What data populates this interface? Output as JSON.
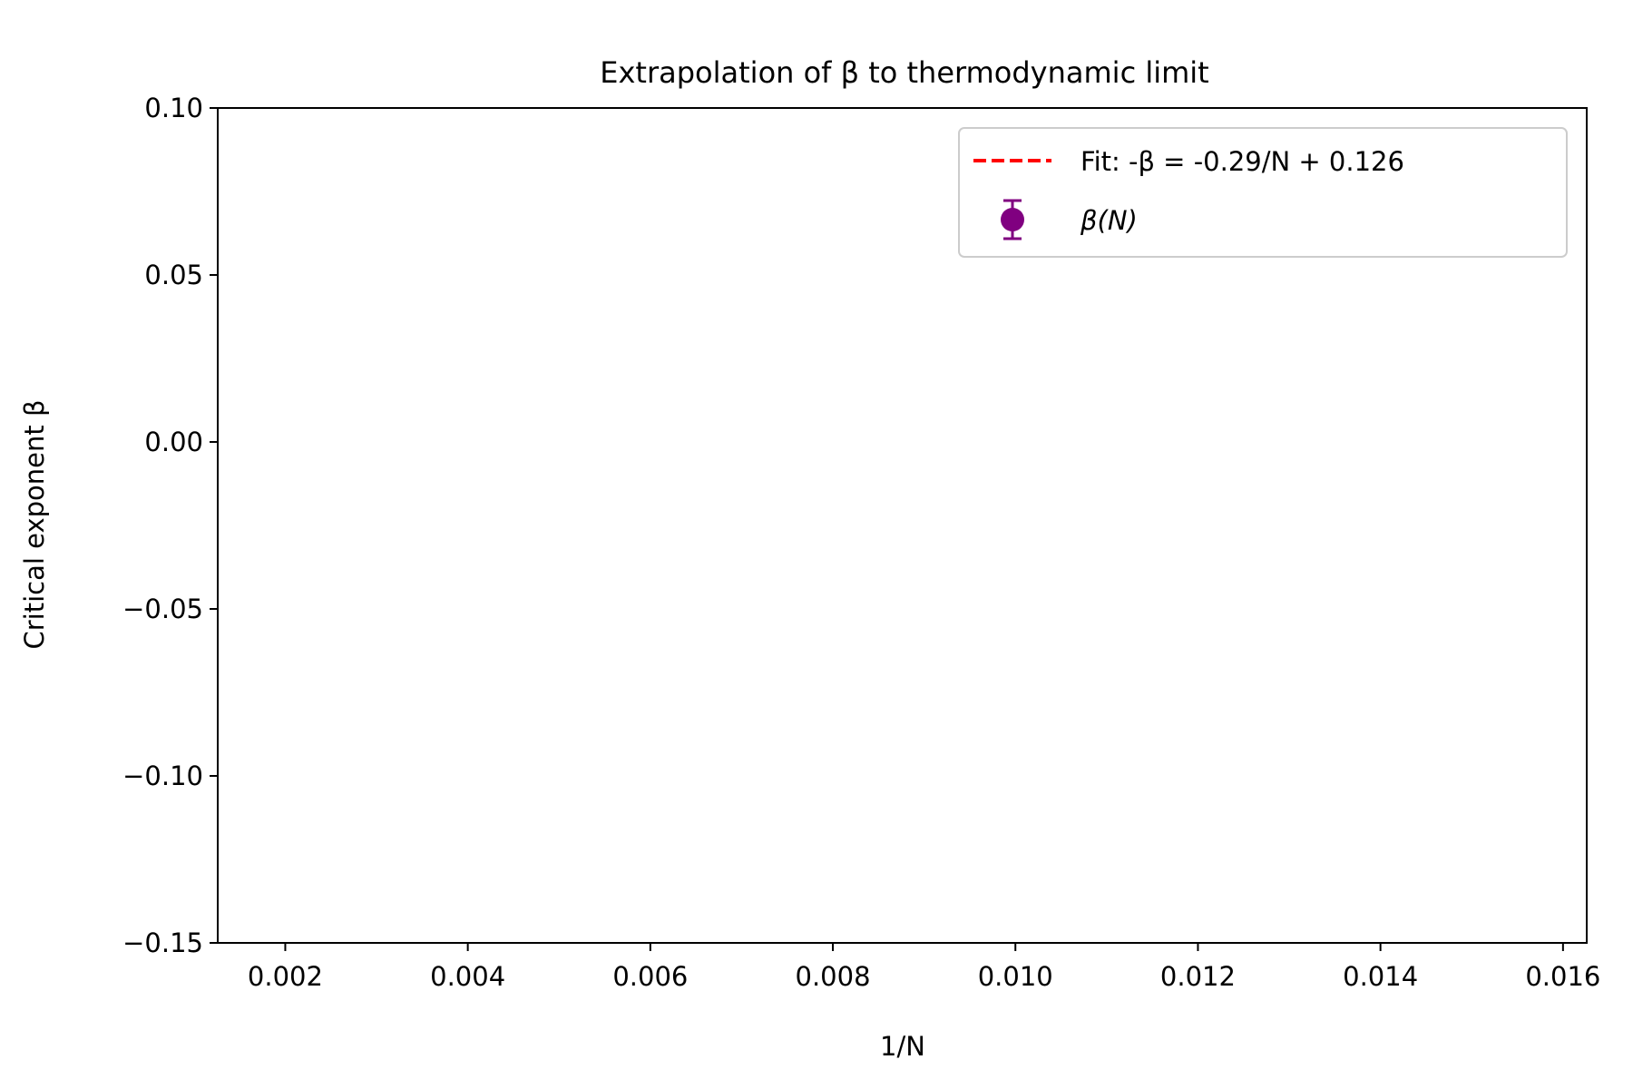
{
  "chart_data": {
    "type": "scatter",
    "title": "Extrapolation of β to thermodynamic limit",
    "xlabel": "1/N",
    "ylabel": "Critical exponent β",
    "xlim": [
      0.00126,
      0.01626
    ],
    "ylim": [
      -0.15,
      0.1
    ],
    "xticks": [
      0.002,
      0.004,
      0.006,
      0.008,
      0.01,
      0.012,
      0.014,
      0.016
    ],
    "xtick_labels": [
      "0.002",
      "0.004",
      "0.006",
      "0.008",
      "0.010",
      "0.012",
      "0.014",
      "0.016"
    ],
    "yticks": [
      0.1,
      0.05,
      0.0,
      -0.05,
      -0.1,
      -0.15
    ],
    "ytick_labels": [
      "0.10",
      "0.05",
      "0.00",
      "−0.05",
      "−0.10",
      "−0.15"
    ],
    "grid": false,
    "legend_position": "top-right",
    "series": [
      {
        "name": "Fit: -β = -0.29/N + 0.126",
        "kind": "line",
        "style": "dashed",
        "color": "#ff0000",
        "slope": -0.29,
        "intercept": 0.126,
        "points": []
      },
      {
        "name": "β(N)",
        "kind": "errorbar",
        "color": "#800080",
        "points": []
      }
    ]
  }
}
